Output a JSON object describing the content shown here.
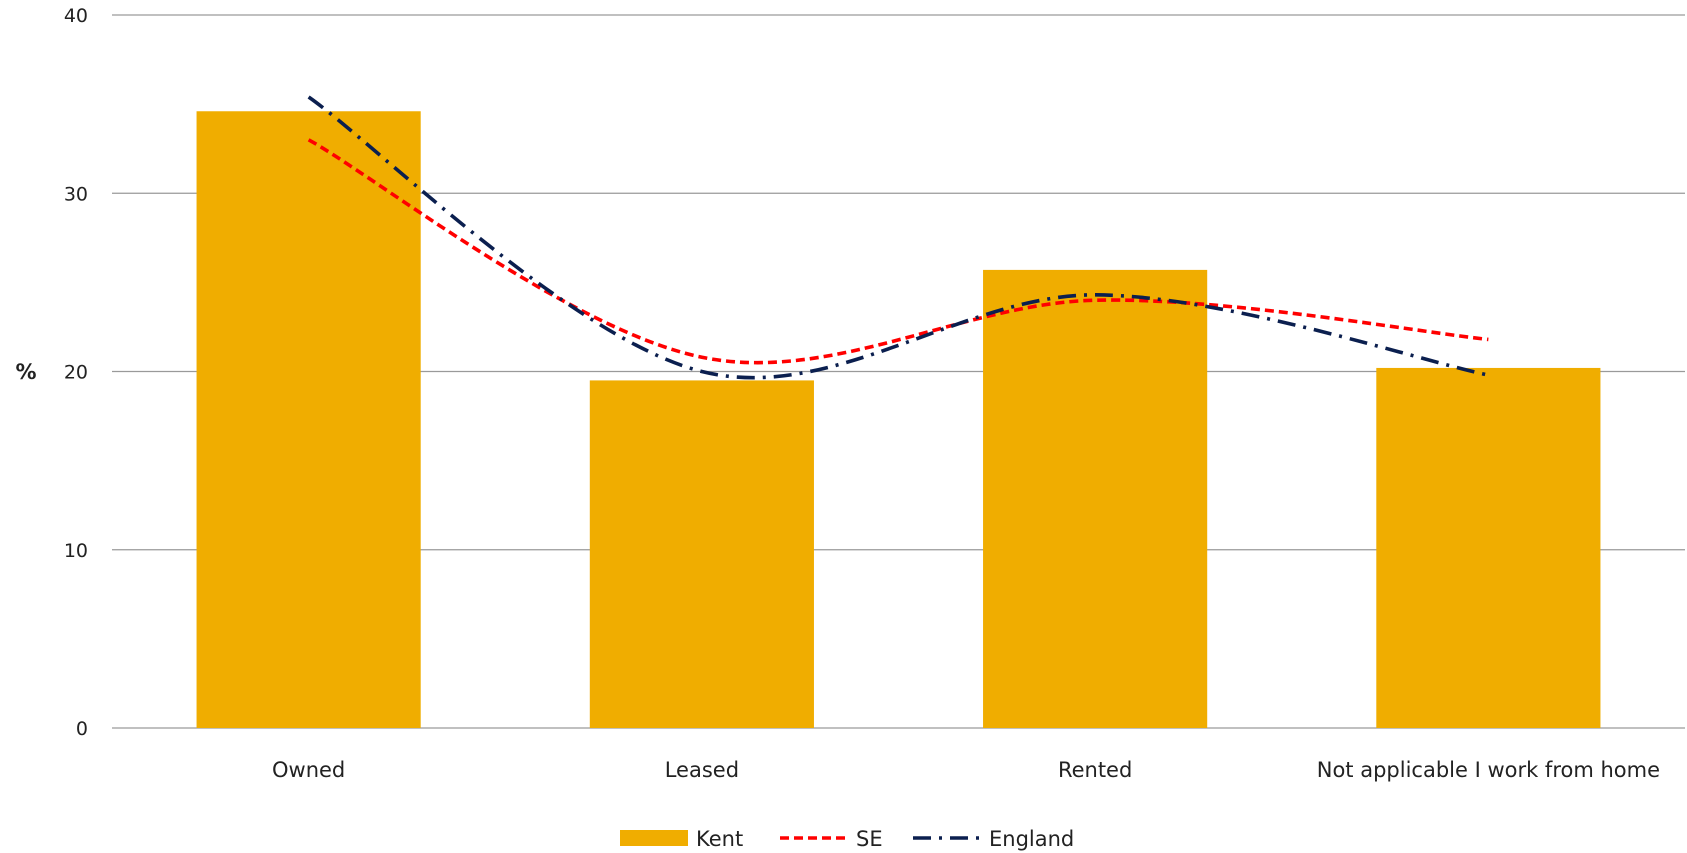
{
  "chart_data": {
    "type": "bar",
    "ylabel": "%",
    "ylim": [
      0,
      40
    ],
    "yticks": [
      0,
      10,
      20,
      30,
      40
    ],
    "grid": true,
    "legend_position": "bottom",
    "categories": [
      "Owned",
      "Leased",
      "Rented",
      "Not applicable I work from home"
    ],
    "series": [
      {
        "name": "Kent",
        "kind": "bar",
        "color": "#F0AD00",
        "values": [
          34.6,
          19.5,
          25.7,
          20.2
        ]
      },
      {
        "name": "SE",
        "kind": "line",
        "dash": "dashed",
        "color": "#FF0000",
        "values": [
          33.0,
          20.8,
          24.0,
          21.8
        ]
      },
      {
        "name": "England",
        "kind": "line",
        "dash": "dash-dot",
        "color": "#0B1F4F",
        "values": [
          35.4,
          20.0,
          24.3,
          19.8
        ]
      }
    ]
  }
}
